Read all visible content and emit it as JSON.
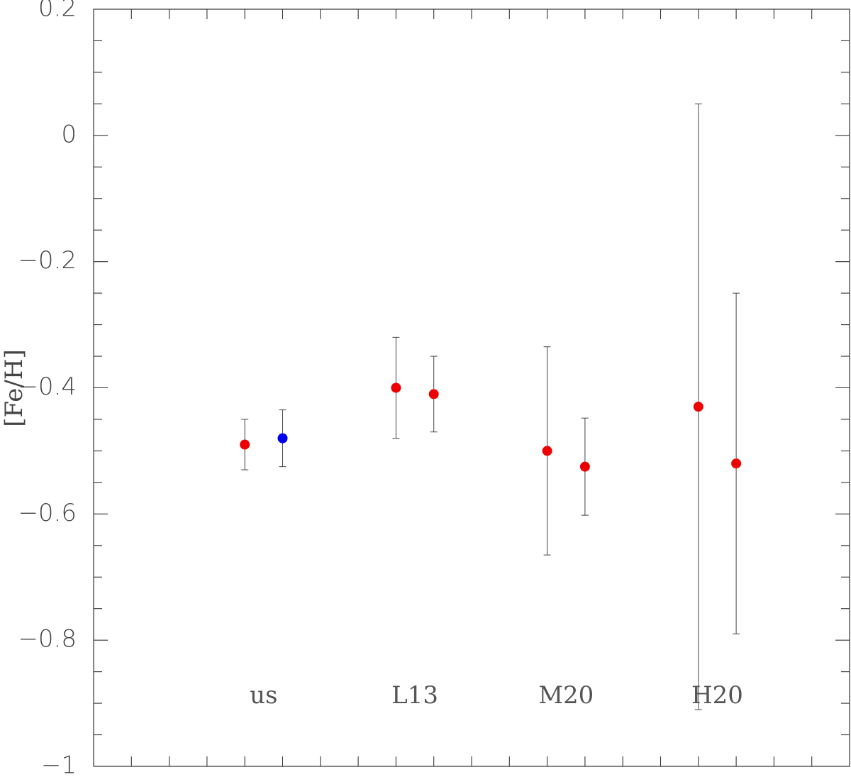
{
  "chart_data": {
    "type": "scatter",
    "y_label": "[Fe/H]",
    "xlim": [
      0,
      20
    ],
    "ylim": [
      -1,
      0.2
    ],
    "xticks": [
      1,
      2,
      3,
      4,
      5,
      6,
      7,
      8,
      9,
      10,
      11,
      12,
      13,
      14,
      15,
      16,
      17,
      18,
      19
    ],
    "show_xtick_labels": false,
    "yticks": [
      {
        "value": -1,
        "label": "−1"
      },
      {
        "value": -0.8,
        "label": "−0.8"
      },
      {
        "value": -0.6,
        "label": "−0.6"
      },
      {
        "value": -0.4,
        "label": "−0.4"
      },
      {
        "value": -0.2,
        "label": "−0.2"
      },
      0,
      0.2
    ],
    "yminorticks": [
      -0.95,
      -0.9,
      -0.85,
      -0.75,
      -0.7,
      -0.65,
      -0.55,
      -0.5,
      -0.45,
      -0.35,
      -0.3,
      -0.25,
      -0.15,
      -0.1,
      -0.05,
      0.05,
      0.1,
      0.15
    ],
    "series": [
      {
        "color": "#ee0000",
        "x": [
          4,
          8,
          9,
          12,
          13,
          16,
          17
        ],
        "values": [
          -0.49,
          -0.4,
          -0.41,
          -0.5,
          -0.525,
          -0.43,
          -0.52
        ],
        "errors": [
          0.04,
          0.08,
          0.06,
          0.165,
          0.077,
          0.48,
          0.27
        ]
      },
      {
        "color": "#0000ee",
        "x": [
          5
        ],
        "values": [
          -0.48
        ],
        "errors": [
          0.045
        ]
      }
    ],
    "annotations": [
      {
        "text": "us",
        "x": 4.5,
        "y": -0.89
      },
      {
        "text": "L13",
        "x": 8.5,
        "y": -0.89
      },
      {
        "text": "M20",
        "x": 12.5,
        "y": -0.89
      },
      {
        "text": "H20",
        "x": 16.5,
        "y": -0.89
      }
    ]
  }
}
